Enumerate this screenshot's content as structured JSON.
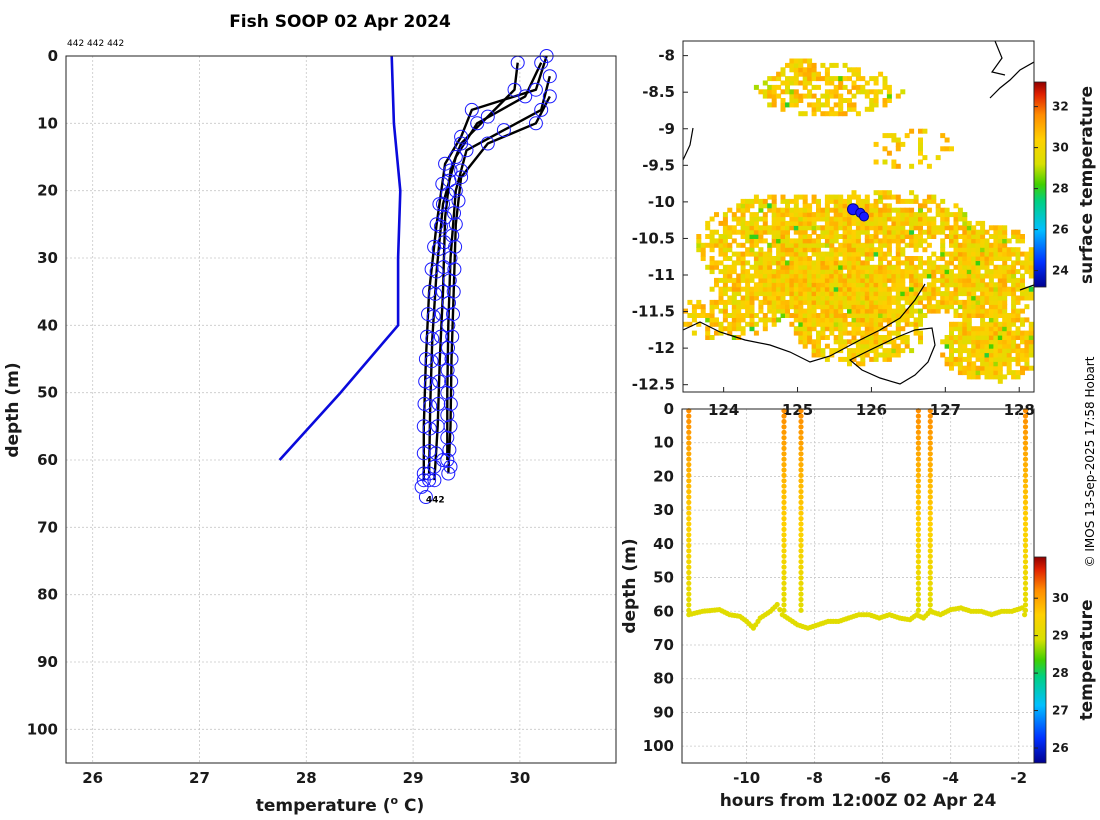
{
  "title": "Fish SOOP 02 Apr 2024",
  "ids_label": "442 442 442",
  "copyright": "© IMOS 13-Sep-2025 17:58 Hobart",
  "chart_data": [
    {
      "name": "profile",
      "type": "line",
      "xlabel": "temperature (° C)",
      "ylabel": "depth (m)",
      "xlim": [
        25.75,
        30.9
      ],
      "ylim": [
        105,
        0
      ],
      "xticks": [
        26,
        27,
        28,
        29,
        30
      ],
      "yticks": [
        0,
        10,
        20,
        30,
        40,
        50,
        60,
        70,
        80,
        90,
        100
      ],
      "end_label": "442",
      "series": [
        {
          "name": "climatology",
          "color": "#0a0adc",
          "points": [
            [
              28.8,
              0
            ],
            [
              28.82,
              10
            ],
            [
              28.88,
              20
            ],
            [
              28.86,
              30
            ],
            [
              28.86,
              40
            ],
            [
              28.32,
              50
            ],
            [
              27.75,
              60
            ]
          ]
        },
        {
          "name": "profile-1",
          "color": "#000000",
          "points": [
            [
              30.25,
              0
            ],
            [
              30.15,
              5
            ],
            [
              29.55,
              8
            ],
            [
              29.45,
              12
            ],
            [
              29.3,
              16
            ],
            [
              29.22,
              25
            ],
            [
              29.15,
              35
            ],
            [
              29.12,
              45
            ],
            [
              29.1,
              55
            ],
            [
              29.1,
              63
            ]
          ]
        },
        {
          "name": "profile-2",
          "color": "#000000",
          "points": [
            [
              30.2,
              1
            ],
            [
              30.05,
              6
            ],
            [
              29.6,
              10
            ],
            [
              29.4,
              15
            ],
            [
              29.28,
              22
            ],
            [
              29.22,
              32
            ],
            [
              29.18,
              42
            ],
            [
              29.16,
              52
            ],
            [
              29.15,
              62
            ]
          ]
        },
        {
          "name": "profile-3",
          "color": "#000000",
          "points": [
            [
              29.98,
              1
            ],
            [
              29.95,
              5
            ],
            [
              29.7,
              9
            ],
            [
              29.45,
              13
            ],
            [
              29.35,
              17
            ],
            [
              29.3,
              24
            ],
            [
              29.28,
              35
            ],
            [
              29.25,
              45
            ],
            [
              29.23,
              55
            ],
            [
              29.2,
              63
            ]
          ]
        },
        {
          "name": "profile-4",
          "color": "#000000",
          "points": [
            [
              30.28,
              3
            ],
            [
              30.2,
              8
            ],
            [
              29.85,
              11
            ],
            [
              29.5,
              14
            ],
            [
              29.4,
              20
            ],
            [
              29.35,
              30
            ],
            [
              29.33,
              40
            ],
            [
              29.32,
              50
            ],
            [
              29.32,
              60
            ]
          ]
        },
        {
          "name": "profile-5",
          "color": "#000000",
          "points": [
            [
              30.28,
              6
            ],
            [
              30.15,
              10
            ],
            [
              29.7,
              13
            ],
            [
              29.45,
              18
            ],
            [
              29.4,
              25
            ],
            [
              29.38,
              35
            ],
            [
              29.36,
              45
            ],
            [
              29.35,
              55
            ],
            [
              29.33,
              62
            ]
          ]
        }
      ]
    },
    {
      "name": "map",
      "type": "heatmap",
      "ylabel": "",
      "xticks": [
        124,
        125,
        126,
        127,
        128
      ],
      "yticks": [
        -8,
        -8.5,
        -9,
        -9.5,
        -10,
        -10.5,
        -11,
        -11.5,
        -12,
        -12.5
      ],
      "xlim": [
        123.45,
        128.2
      ],
      "ylim": [
        -12.6,
        -7.8
      ],
      "colorbar_label": "surface temperature",
      "colorbar_ticks": [
        24,
        26,
        28,
        30,
        32
      ],
      "colorbar_range": [
        23.2,
        33.2
      ],
      "track_positions": [
        [
          125.75,
          -10.1
        ],
        [
          125.85,
          -10.15
        ],
        [
          125.9,
          -10.2
        ]
      ]
    },
    {
      "name": "section",
      "type": "scatter",
      "xlabel": "hours from 12:00Z 02 Apr 24",
      "ylabel": "depth (m)",
      "xlim": [
        -11.9,
        -1.55
      ],
      "ylim": [
        105,
        0
      ],
      "xticks": [
        -10,
        -8,
        -6,
        -4,
        -2
      ],
      "yticks": [
        0,
        10,
        20,
        30,
        40,
        50,
        60,
        70,
        80,
        90,
        100
      ],
      "colorbar_label": "temperature",
      "colorbar_ticks": [
        26,
        27,
        28,
        29,
        30
      ],
      "colorbar_range": [
        25.6,
        31.1
      ],
      "profile_hours": [
        -11.7,
        -8.9,
        -8.4,
        -4.95,
        -4.6,
        -1.8
      ],
      "bottom_series": [
        [
          -11.7,
          61
        ],
        [
          -11.3,
          60
        ],
        [
          -10.8,
          59.5
        ],
        [
          -10.5,
          61
        ],
        [
          -10.2,
          61.5
        ],
        [
          -10.0,
          63
        ],
        [
          -9.8,
          65
        ],
        [
          -9.6,
          62
        ],
        [
          -9.3,
          60
        ],
        [
          -9.1,
          58
        ],
        [
          -8.95,
          61
        ],
        [
          -8.5,
          64
        ],
        [
          -8.2,
          65
        ],
        [
          -7.9,
          64
        ],
        [
          -7.6,
          63
        ],
        [
          -7.3,
          63
        ],
        [
          -7.0,
          62
        ],
        [
          -6.7,
          61
        ],
        [
          -6.4,
          61
        ],
        [
          -6.1,
          62
        ],
        [
          -5.8,
          61
        ],
        [
          -5.5,
          62
        ],
        [
          -5.2,
          62.5
        ],
        [
          -5.0,
          61
        ],
        [
          -4.8,
          62
        ],
        [
          -4.6,
          60
        ],
        [
          -4.3,
          61
        ],
        [
          -4.0,
          59.5
        ],
        [
          -3.7,
          59
        ],
        [
          -3.4,
          60
        ],
        [
          -3.1,
          60
        ],
        [
          -2.8,
          61
        ],
        [
          -2.5,
          60
        ],
        [
          -2.2,
          60
        ],
        [
          -1.9,
          59
        ],
        [
          -1.75,
          63
        ]
      ]
    }
  ]
}
